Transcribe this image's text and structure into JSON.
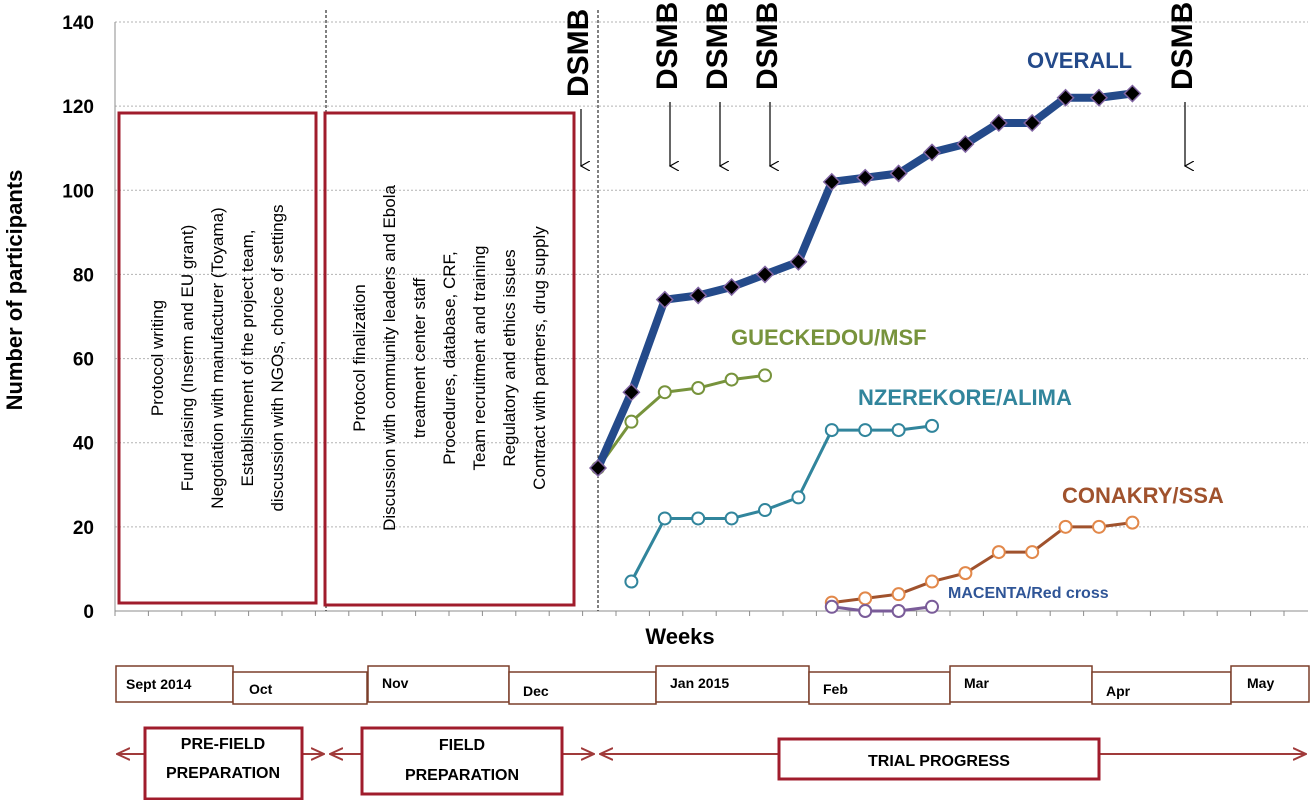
{
  "chart_data": {
    "type": "line",
    "ylabel": "Number of participants",
    "xlabel": "Weeks",
    "ylim": [
      0,
      140
    ],
    "yticks": [
      "0",
      "20",
      "40",
      "60",
      "80",
      "100",
      "120",
      "140"
    ],
    "grid": true,
    "series": [
      {
        "name": "OVERALL",
        "color": "#244a8a",
        "marker": "diamond",
        "x": [
          0,
          1,
          2,
          3,
          4,
          5,
          6,
          7,
          8,
          9,
          10,
          11,
          12,
          13,
          14,
          15,
          16
        ],
        "values": [
          34,
          52,
          74,
          75,
          77,
          80,
          83,
          102,
          103,
          104,
          109,
          111,
          116,
          116,
          122,
          122,
          123
        ]
      },
      {
        "name": "GUECKEDOU/MSF",
        "color": "#77933c",
        "marker": "circle",
        "x": [
          0,
          1,
          2,
          3,
          4,
          5
        ],
        "values": [
          34,
          45,
          52,
          53,
          55,
          56
        ]
      },
      {
        "name": "NZEREKORE/ALIMA",
        "color": "#31859c",
        "marker": "circle",
        "x": [
          1,
          2,
          3,
          4,
          5,
          6,
          7,
          8,
          9,
          10
        ],
        "values": [
          7,
          22,
          22,
          22,
          24,
          27,
          43,
          43,
          43,
          44
        ]
      },
      {
        "name": "CONAKRY/SSA",
        "color": "#a0522d",
        "marker": "circle",
        "x": [
          7,
          8,
          9,
          10,
          11,
          12,
          13,
          14,
          15,
          16
        ],
        "values": [
          2,
          3,
          4,
          7,
          9,
          14,
          14,
          20,
          20,
          21
        ]
      },
      {
        "name": "MACENTA/Red cross",
        "color": "#7a5c99",
        "marker": "circle",
        "x": [
          7,
          8,
          9,
          10
        ],
        "values": [
          1,
          0,
          0,
          1
        ]
      }
    ],
    "dsmb_label": "DSMB",
    "prefield_box": [
      "Protocol writing",
      "Fund raising (Inserm and EU grant)",
      "Negotiation with manufacturer (Toyama)",
      "Establishment of the project team,",
      "discussion with NGOs, choice of settings"
    ],
    "field_box": [
      "Protocol finalization",
      "Discussion with community leaders and Ebola",
      "treatment center staff",
      "Procedures, database, CRF,",
      "Team recruitment and training",
      "Regulatory and ethics issues",
      "Contract with partners, drug supply"
    ],
    "months": [
      "Sept 2014",
      "Oct",
      "Nov",
      "Dec",
      "Jan 2015",
      "Feb",
      "Mar",
      "Apr",
      "May"
    ],
    "phases": {
      "prefield": [
        "PRE-FIELD",
        "PREPARATION"
      ],
      "field": [
        "FIELD",
        "PREPARATION"
      ],
      "trial": [
        "TRIAL PROGRESS"
      ]
    },
    "colors": {
      "box_border": "#a01c2c",
      "month_border": "#7b3f2a",
      "arrow": "#a03a3a",
      "grid": "#bfbfbf"
    }
  }
}
